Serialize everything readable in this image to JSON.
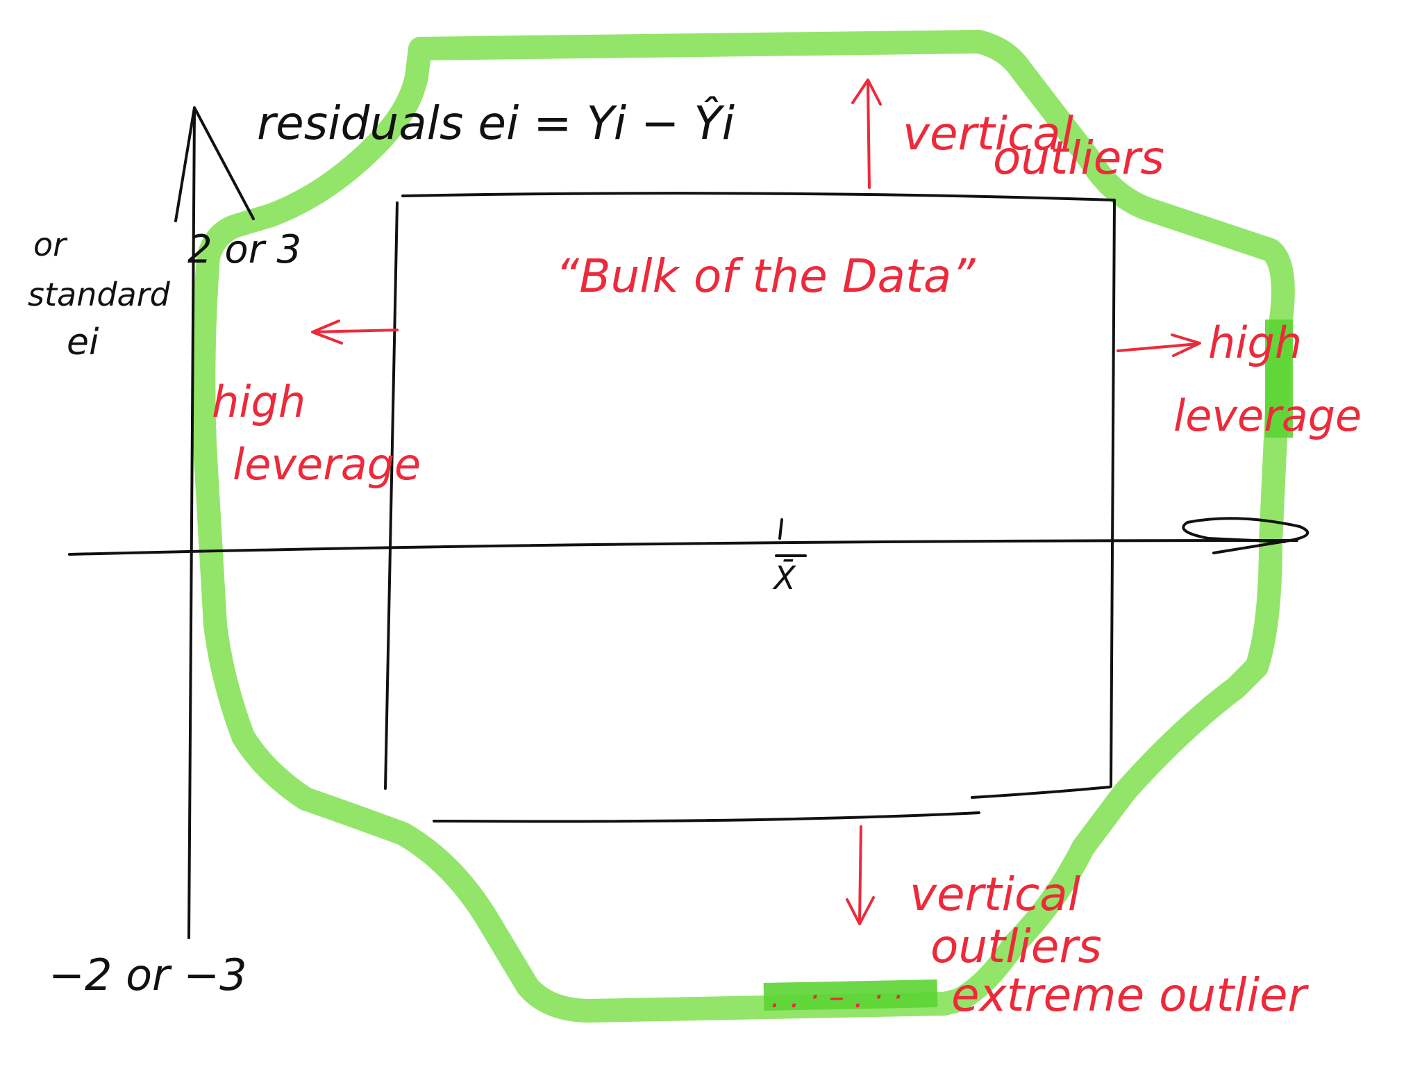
{
  "diagram": {
    "title": "residuals ei = Yi − Ŷi",
    "y_label_line1": "or",
    "y_label_line2": "standard",
    "y_label_line3": "ei",
    "y_upper_threshold": "2 or 3",
    "y_lower_threshold": "−2 or −3",
    "x_mean_label": "X̄",
    "bulk_label": "“Bulk of the Data”",
    "top_region_label_line1": "vertical",
    "top_region_label_line2": "outliers",
    "bottom_region_label_line1": "vertical",
    "bottom_region_label_line2": "outliers",
    "left_region_label_line1": "high",
    "left_region_label_line2": "leverage",
    "right_region_label_line1": "high",
    "right_region_label_line2": "leverage",
    "extreme_label": "extreme outlier",
    "extreme_dots": ". . · – . · ·",
    "colors": {
      "ink": "#111111",
      "annotation": "#ec2a3a",
      "highlight": "#7fe04f"
    }
  }
}
